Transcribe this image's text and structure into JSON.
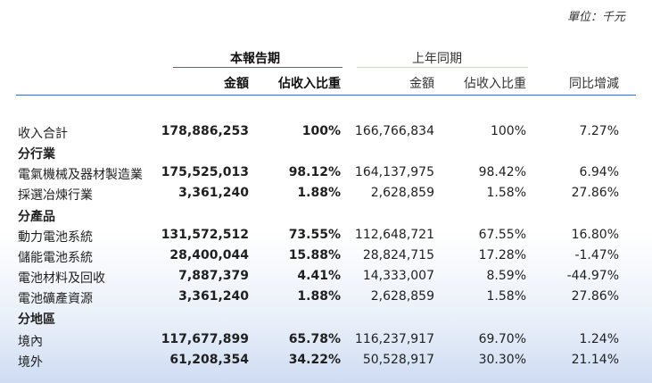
{
  "unit": "單位：千元",
  "header": {
    "current_period": "本報告期",
    "prior_period": "上年同期",
    "amount": "金額",
    "share": "佔收入比重",
    "yoy": "同比增減"
  },
  "rows": [
    {
      "label": "收入合計",
      "amount": "178,886,253",
      "share": "100%",
      "prior_amount": "166,766,834",
      "prior_share": "100%",
      "yoy": "7.27%"
    },
    {
      "section": "分行業"
    },
    {
      "label": "電氣機械及器材製造業",
      "amount": "175,525,013",
      "share": "98.12%",
      "prior_amount": "164,137,975",
      "prior_share": "98.42%",
      "yoy": "6.94%"
    },
    {
      "label": "採選冶煉行業",
      "amount": "3,361,240",
      "share": "1.88%",
      "prior_amount": "2,628,859",
      "prior_share": "1.58%",
      "yoy": "27.86%"
    },
    {
      "section": "分產品"
    },
    {
      "label": "動力電池系統",
      "amount": "131,572,512",
      "share": "73.55%",
      "prior_amount": "112,648,721",
      "prior_share": "67.55%",
      "yoy": "16.80%"
    },
    {
      "label": "儲能電池系統",
      "amount": "28,400,044",
      "share": "15.88%",
      "prior_amount": "28,824,715",
      "prior_share": "17.28%",
      "yoy": "-1.47%"
    },
    {
      "label": "電池材料及回收",
      "amount": "7,887,379",
      "share": "4.41%",
      "prior_amount": "14,333,007",
      "prior_share": "8.59%",
      "yoy": "-44.97%"
    },
    {
      "label": "電池礦產資源",
      "amount": "3,361,240",
      "share": "1.88%",
      "prior_amount": "2,628,859",
      "prior_share": "1.58%",
      "yoy": "27.86%"
    },
    {
      "section": "分地區"
    },
    {
      "label": "境內",
      "amount": "117,677,899",
      "share": "65.78%",
      "prior_amount": "116,237,917",
      "prior_share": "69.70%",
      "yoy": "1.24%"
    },
    {
      "label": "境外",
      "amount": "61,208,354",
      "share": "34.22%",
      "prior_amount": "50,528,917",
      "prior_share": "30.30%",
      "yoy": "21.14%"
    }
  ]
}
